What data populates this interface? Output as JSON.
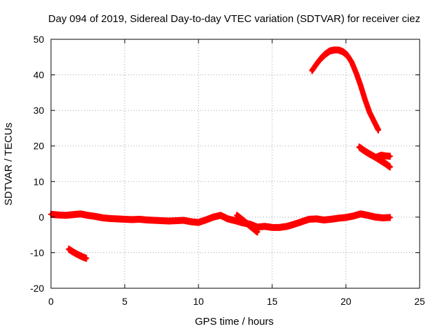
{
  "chart_data": {
    "type": "scatter",
    "title": "Day 094 of 2019, Sidereal Day-to-day VTEC variation (SDTVAR) for receiver ciez",
    "xlabel": "GPS time / hours",
    "ylabel": "SDTVAR / TECUs",
    "xlim": [
      0,
      25
    ],
    "ylim": [
      -20,
      50
    ],
    "x_ticks": [
      0,
      5,
      10,
      15,
      20,
      25
    ],
    "x_tick_labels": [
      "0",
      "5",
      "10",
      "15",
      "20",
      "25"
    ],
    "y_ticks": [
      -20,
      -10,
      0,
      10,
      20,
      30,
      40,
      50
    ],
    "y_tick_labels": [
      "-20",
      "-10",
      "0",
      "10",
      "20",
      "30",
      "40",
      "50"
    ],
    "grid": true,
    "marker": "plus",
    "color": "#ff0000",
    "series": [
      {
        "name": "main-track",
        "x": [
          0.0,
          0.5,
          1.0,
          1.5,
          2.0,
          2.5,
          3.0,
          3.5,
          4.0,
          4.5,
          5.0,
          5.5,
          6.0,
          6.5,
          7.0,
          7.5,
          8.0,
          8.5,
          9.0,
          9.5,
          10.0,
          10.5,
          11.0,
          11.5,
          12.0,
          12.5,
          13.0,
          13.5,
          14.0,
          14.5,
          15.0,
          15.5,
          16.0,
          16.5,
          17.0,
          17.5,
          18.0,
          18.5,
          19.0,
          19.5,
          20.0,
          20.5,
          21.0,
          21.5,
          22.0,
          22.5,
          23.0
        ],
        "y": [
          0.8,
          0.6,
          0.5,
          0.7,
          0.9,
          0.5,
          0.2,
          -0.2,
          -0.4,
          -0.5,
          -0.6,
          -0.7,
          -0.6,
          -0.8,
          -0.9,
          -1.0,
          -1.1,
          -1.0,
          -0.9,
          -1.3,
          -1.5,
          -0.8,
          0.0,
          0.5,
          -0.5,
          -1.0,
          -1.6,
          -2.0,
          -2.8,
          -2.6,
          -2.9,
          -2.9,
          -2.6,
          -2.0,
          -1.3,
          -0.6,
          -0.5,
          -0.8,
          -0.6,
          -0.3,
          -0.1,
          0.3,
          0.9,
          0.5,
          0.0,
          -0.2,
          -0.1
        ]
      },
      {
        "name": "branch-13h",
        "x": [
          12.6,
          12.9,
          13.2,
          13.5,
          13.8,
          14.0
        ],
        "y": [
          0.5,
          -0.5,
          -1.5,
          -2.5,
          -3.5,
          -4.2
        ]
      },
      {
        "name": "low-segment",
        "x": [
          1.2,
          1.5,
          1.8,
          2.1,
          2.4
        ],
        "y": [
          -9.0,
          -9.8,
          -10.5,
          -11.1,
          -11.6
        ]
      },
      {
        "name": "peak-arc",
        "x": [
          17.7,
          18.0,
          18.3,
          18.6,
          18.9,
          19.2,
          19.5,
          19.8,
          20.1,
          20.4,
          20.7,
          21.0,
          21.3,
          21.6,
          21.9,
          22.2
        ],
        "y": [
          41.2,
          43.0,
          44.6,
          45.8,
          46.7,
          47.0,
          47.0,
          46.5,
          45.5,
          43.5,
          40.5,
          37.0,
          33.0,
          29.5,
          27.0,
          24.5
        ]
      },
      {
        "name": "late-segment-a",
        "x": [
          20.9,
          21.2,
          21.5,
          21.8,
          22.1,
          22.4,
          22.7,
          23.0
        ],
        "y": [
          19.7,
          18.8,
          18.0,
          17.3,
          16.6,
          15.8,
          15.0,
          14.1
        ]
      },
      {
        "name": "late-segment-b",
        "x": [
          22.1,
          22.4,
          22.7,
          23.0
        ],
        "y": [
          16.9,
          17.4,
          17.2,
          17.1
        ]
      }
    ]
  }
}
